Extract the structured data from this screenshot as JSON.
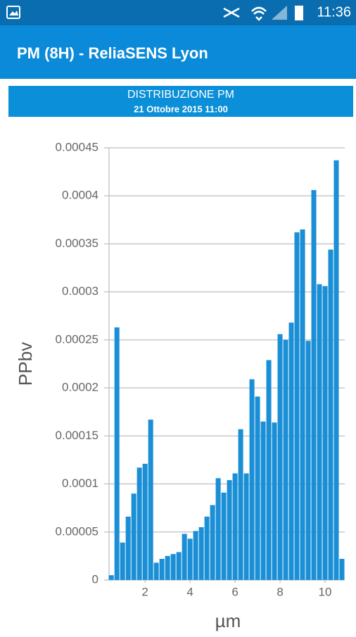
{
  "status_bar": {
    "time": "11:36"
  },
  "app_bar": {
    "title": "PM (8H) - ReliaSENS Lyon"
  },
  "chart_data": {
    "type": "bar",
    "title": "DISTRIBUZIONE PM",
    "subtitle": "21 Ottobre 2015 11:00",
    "x_label": "µm",
    "y_label": "PPbv",
    "color": "#1a8fd6",
    "grid": true,
    "x": [
      0.5,
      0.75,
      1,
      1.25,
      1.5,
      1.75,
      2,
      2.25,
      2.5,
      2.75,
      3,
      3.25,
      3.5,
      3.75,
      4,
      4.25,
      4.5,
      4.75,
      5,
      5.25,
      5.5,
      5.75,
      6,
      6.25,
      6.5,
      6.75,
      7,
      7.25,
      7.5,
      7.75,
      8,
      8.25,
      8.5,
      8.75,
      9,
      9.25,
      9.5,
      9.75,
      10,
      10.25,
      10.5,
      10.75
    ],
    "values": [
      5e-06,
      0.000263,
      3.9e-05,
      6.6e-05,
      9e-05,
      0.000117,
      0.000121,
      0.000167,
      1.8e-05,
      2.2e-05,
      2.5e-05,
      2.7e-05,
      2.9e-05,
      4.8e-05,
      4.3e-05,
      5.1e-05,
      5.5e-05,
      6.6e-05,
      7.8e-05,
      0.000106,
      9.1e-05,
      0.000104,
      0.000111,
      0.000157,
      0.000111,
      0.000209,
      0.000191,
      0.000165,
      0.000229,
      0.000164,
      0.000256,
      0.00025,
      0.000268,
      0.000362,
      0.000365,
      0.000249,
      0.000406,
      0.000308,
      0.000306,
      0.000344,
      0.000437,
      2.2e-05
    ],
    "xlim": [
      0.4,
      10.875
    ],
    "xticks": [
      2,
      4,
      6,
      8,
      10
    ],
    "ylim": [
      0,
      0.00045
    ],
    "yticks": [
      0,
      5e-05,
      0.0001,
      0.00015,
      0.0002,
      0.00025,
      0.0003,
      0.00035,
      0.0004,
      0.00045
    ]
  }
}
